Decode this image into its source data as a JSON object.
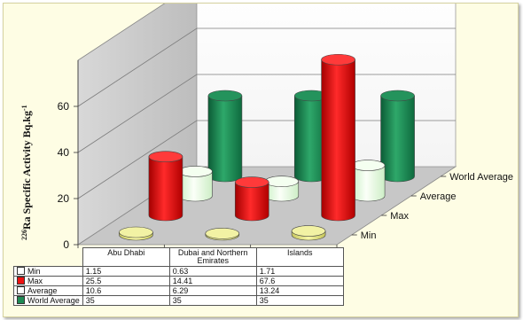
{
  "chart_data": {
    "type": "bar",
    "subtype": "3d-cylinder",
    "ylabel_sup": "226",
    "ylabel": "Ra Specific Activity Bq.kg",
    "ylabel_unit_sup": "-1",
    "ylim": [
      0,
      80
    ],
    "yticks": [
      "0",
      "20",
      "40",
      "60"
    ],
    "categories": [
      "Abu Dhabi",
      "Dubai and Northern Emirates",
      "Islands"
    ],
    "series": [
      {
        "name": "Min",
        "values": [
          1.15,
          0.63,
          1.71
        ],
        "display": [
          "1.15",
          "0.63",
          "1.71"
        ],
        "color": "#efef9a"
      },
      {
        "name": "Max",
        "values": [
          25.5,
          14.41,
          67.6
        ],
        "display": [
          "25.5",
          "14.41",
          "67.6"
        ],
        "color": "#ee1111"
      },
      {
        "name": "Average",
        "values": [
          10.6,
          6.29,
          13.24
        ],
        "display": [
          "10.6",
          "6.29",
          "13.24"
        ],
        "color": "#e8ffe0"
      },
      {
        "name": "World Average",
        "values": [
          35,
          35,
          35
        ],
        "display": [
          "35",
          "35",
          "35"
        ],
        "color": "#1e8a55"
      }
    ],
    "depth_labels": [
      "Min",
      "Max",
      "Average",
      "World Average"
    ],
    "grid": true,
    "legend": "data-table"
  }
}
